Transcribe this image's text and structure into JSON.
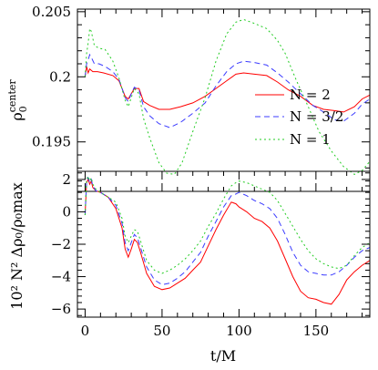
{
  "chart_data": [
    {
      "type": "line",
      "ylabel_main": "ρ",
      "ylabel_sub": "0",
      "ylabel_sup": "center",
      "xlim": [
        -5,
        185
      ],
      "ylim": [
        0.1912,
        0.2052
      ],
      "yticks": [
        0.195,
        0.2,
        0.205
      ],
      "ytick_labels": [
        "0.195",
        "0.2",
        "0.205"
      ],
      "xticks": [
        0,
        50,
        100,
        150
      ],
      "legend_position": "bottom-right",
      "series": [
        {
          "name": "N = 2",
          "color": "#ff0000",
          "dash": "",
          "x": [
            0,
            1,
            2,
            3,
            5,
            8,
            12,
            18,
            22,
            26,
            28,
            30,
            32,
            35,
            38,
            42,
            48,
            55,
            62,
            70,
            78,
            85,
            92,
            98,
            103,
            110,
            118,
            125,
            132,
            140,
            148,
            155,
            162,
            168,
            175,
            180,
            185
          ],
          "y": [
            0.2,
            0.2008,
            0.2003,
            0.2006,
            0.2004,
            0.2004,
            0.2003,
            0.2001,
            0.1997,
            0.1985,
            0.1983,
            0.1987,
            0.1991,
            0.1991,
            0.1981,
            0.1978,
            0.1975,
            0.1975,
            0.1977,
            0.198,
            0.1985,
            0.1991,
            0.1997,
            0.2002,
            0.2003,
            0.2002,
            0.2001,
            0.1996,
            0.199,
            0.1985,
            0.1978,
            0.1975,
            0.1974,
            0.1973,
            0.1977,
            0.1983,
            0.1986
          ]
        },
        {
          "name": "N = 3/2",
          "color": "#3b3bff",
          "dash": "6,4",
          "x": [
            0,
            1,
            2,
            3,
            4,
            6,
            9,
            13,
            18,
            22,
            26,
            28,
            30,
            32,
            35,
            38,
            42,
            48,
            55,
            62,
            70,
            78,
            85,
            92,
            98,
            103,
            110,
            118,
            125,
            132,
            140,
            148,
            155,
            162,
            168,
            175,
            180,
            185
          ],
          "y": [
            0.2,
            0.201,
            0.2013,
            0.2017,
            0.2015,
            0.201,
            0.201,
            0.2008,
            0.2004,
            0.1998,
            0.1984,
            0.1981,
            0.1987,
            0.1992,
            0.199,
            0.1977,
            0.197,
            0.1964,
            0.1961,
            0.1965,
            0.1972,
            0.198,
            0.1993,
            0.2004,
            0.201,
            0.2012,
            0.2011,
            0.2009,
            0.2003,
            0.1996,
            0.1987,
            0.1978,
            0.1973,
            0.1967,
            0.1966,
            0.1972,
            0.1979,
            0.1983
          ]
        },
        {
          "name": "N = 1",
          "color": "#22cc22",
          "dash": "2,3",
          "x": [
            0,
            1,
            2,
            3,
            4,
            6,
            9,
            13,
            18,
            22,
            26,
            28,
            30,
            32,
            35,
            38,
            42,
            48,
            53,
            58,
            63,
            70,
            78,
            85,
            92,
            98,
            103,
            110,
            118,
            125,
            130,
            137,
            145,
            152,
            160,
            168,
            175,
            180,
            185
          ],
          "y": [
            0.2,
            0.2018,
            0.2026,
            0.2037,
            0.2035,
            0.2024,
            0.2022,
            0.2021,
            0.2012,
            0.1999,
            0.1982,
            0.1977,
            0.1984,
            0.1991,
            0.1987,
            0.1968,
            0.1953,
            0.1934,
            0.1926,
            0.1925,
            0.1934,
            0.1958,
            0.1984,
            0.2012,
            0.2033,
            0.2042,
            0.2044,
            0.2041,
            0.2037,
            0.2028,
            0.2018,
            0.1998,
            0.1977,
            0.1958,
            0.1943,
            0.1931,
            0.1925,
            0.1928,
            0.1935
          ]
        }
      ]
    },
    {
      "type": "line",
      "xlabel": "t/M",
      "ylabel": "10² N² Δρ₀/ρ₀max",
      "xlim": [
        -5,
        185
      ],
      "ylim": [
        -6.5,
        2.5
      ],
      "yticks": [
        -6,
        -4,
        -2,
        0,
        2
      ],
      "ytick_labels": [
        "−6",
        "−4",
        "−2",
        "0",
        "2"
      ],
      "xticks": [
        0,
        50,
        100,
        150
      ],
      "xtick_labels": [
        "0",
        "50",
        "100",
        "150"
      ],
      "series": [
        {
          "name": "N = 2",
          "color": "#ff0000",
          "dash": "",
          "x": [
            0,
            1,
            2,
            3,
            4,
            5,
            7,
            10,
            15,
            20,
            24,
            26,
            28,
            30,
            32,
            34,
            36,
            40,
            45,
            50,
            55,
            60,
            65,
            70,
            75,
            80,
            85,
            90,
            95,
            98,
            100,
            105,
            110,
            115,
            120,
            125,
            130,
            135,
            140,
            145,
            150,
            155,
            160,
            165,
            170,
            175,
            180,
            185
          ],
          "y": [
            -0.2,
            1.8,
            2.0,
            1.7,
            1.9,
            1.5,
            1.3,
            1.2,
            0.9,
            0.2,
            -1.0,
            -2.3,
            -2.8,
            -2.3,
            -1.7,
            -1.9,
            -2.5,
            -3.8,
            -4.6,
            -4.8,
            -4.7,
            -4.4,
            -4.1,
            -3.6,
            -3.1,
            -2.1,
            -1.1,
            -0.2,
            0.6,
            0.5,
            0.3,
            0.0,
            -0.4,
            -0.6,
            -1.0,
            -1.8,
            -2.9,
            -4.0,
            -4.9,
            -5.3,
            -5.4,
            -5.6,
            -5.7,
            -5.1,
            -4.2,
            -3.7,
            -3.3,
            -3.0
          ]
        },
        {
          "name": "N = 3/2",
          "color": "#3b3bff",
          "dash": "6,4",
          "x": [
            0,
            1,
            2,
            3,
            4,
            5,
            7,
            10,
            15,
            20,
            24,
            26,
            28,
            30,
            32,
            34,
            36,
            40,
            45,
            50,
            55,
            60,
            65,
            70,
            75,
            80,
            85,
            90,
            95,
            98,
            100,
            105,
            110,
            115,
            120,
            125,
            130,
            135,
            140,
            145,
            150,
            155,
            160,
            165,
            170,
            175,
            180,
            185
          ],
          "y": [
            -0.2,
            1.9,
            2.1,
            1.8,
            2.0,
            1.6,
            1.3,
            1.2,
            0.9,
            0.4,
            -0.7,
            -1.9,
            -2.4,
            -1.9,
            -1.4,
            -1.6,
            -2.2,
            -3.4,
            -4.2,
            -4.5,
            -4.4,
            -4.1,
            -3.7,
            -3.1,
            -2.5,
            -1.5,
            -0.6,
            0.3,
            1.0,
            1.1,
            1.2,
            1.0,
            0.7,
            0.5,
            0.2,
            -0.4,
            -1.4,
            -2.5,
            -3.3,
            -3.7,
            -3.8,
            -3.9,
            -3.9,
            -3.7,
            -3.3,
            -2.8,
            -2.4,
            -2.2
          ]
        },
        {
          "name": "N = 1",
          "color": "#22cc22",
          "dash": "2,3",
          "x": [
            0,
            1,
            2,
            3,
            4,
            5,
            7,
            10,
            15,
            20,
            24,
            26,
            28,
            30,
            32,
            34,
            36,
            40,
            45,
            50,
            55,
            60,
            65,
            70,
            75,
            80,
            85,
            90,
            95,
            98,
            100,
            105,
            110,
            115,
            120,
            125,
            130,
            135,
            140,
            145,
            150,
            155,
            160,
            165,
            170,
            175,
            180,
            185
          ],
          "y": [
            -0.2,
            2.0,
            2.2,
            1.9,
            2.1,
            1.7,
            1.4,
            1.2,
            0.9,
            0.6,
            -0.4,
            -1.5,
            -1.9,
            -1.5,
            -1.1,
            -1.2,
            -1.8,
            -3.0,
            -3.6,
            -3.8,
            -3.6,
            -3.3,
            -2.9,
            -2.4,
            -1.8,
            -0.9,
            -0.1,
            0.8,
            1.6,
            1.8,
            1.9,
            1.8,
            1.6,
            1.4,
            1.2,
            0.7,
            -0.1,
            -0.9,
            -1.7,
            -2.4,
            -2.9,
            -3.2,
            -3.4,
            -3.5,
            -3.3,
            -2.7,
            -2.2,
            -1.9
          ]
        }
      ]
    }
  ]
}
